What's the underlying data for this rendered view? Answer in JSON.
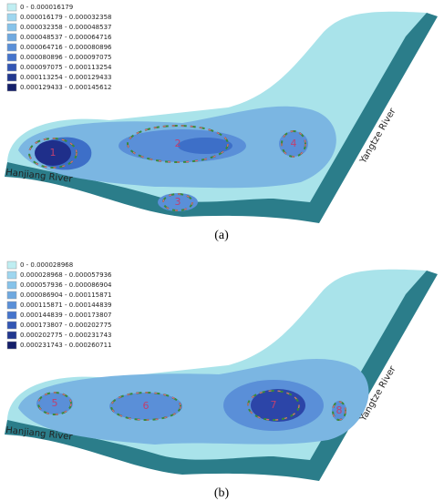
{
  "panels": [
    {
      "legend": [
        "0 - 0.000016179",
        "0.000016179 - 0.000032358",
        "0.000032358 - 0.000048537",
        "0.000048537 - 0.000064716",
        "0.000064716 - 0.000080896",
        "0.000080896 - 0.000097075",
        "0.000097075 - 0.000113254",
        "0.000113254 - 0.000129433",
        "0.000129433 - 0.000145612"
      ],
      "zones": [
        "1",
        "2",
        "3",
        "4"
      ],
      "rivers": [
        "Hanjiang River",
        "Yangtze River"
      ],
      "caption": "(a)"
    },
    {
      "legend": [
        "0 - 0.000028968",
        "0.000028968 - 0.000057936",
        "0.000057936 - 0.000086904",
        "0.000086904 - 0.000115871",
        "0.000115871 - 0.000144839",
        "0.000144839 - 0.000173807",
        "0.000173807 - 0.000202775",
        "0.000202775 - 0.000231743",
        "0.000231743 - 0.000260711"
      ],
      "zones": [
        "5",
        "6",
        "7",
        "8"
      ],
      "rivers": [
        "Hanjiang River",
        "Yangtze River"
      ],
      "caption": "(b)"
    }
  ]
}
